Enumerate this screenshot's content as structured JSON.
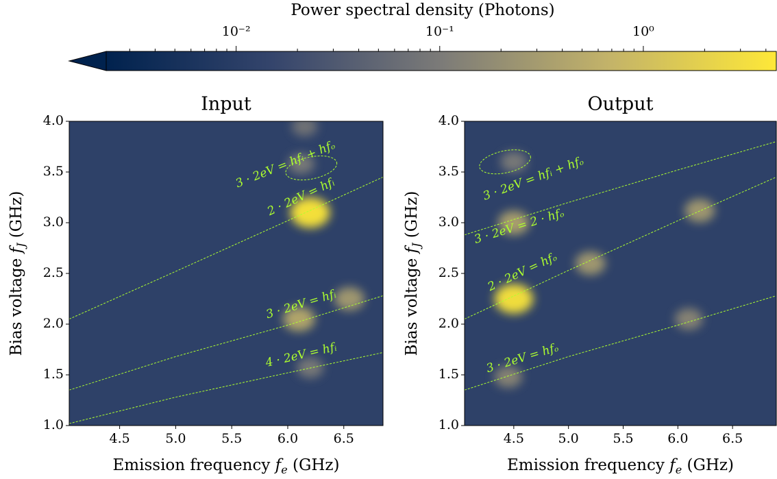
{
  "chart_data": {
    "type": "heatmap",
    "colormap": [
      "#00224e",
      "#35456c",
      "#7c7b78",
      "#c3b369",
      "#fee838"
    ],
    "annotation_color": "#adff2f",
    "colorbar": {
      "label": "Power spectral density (Photons)",
      "clim": [
        0.0023,
        4.5
      ],
      "log": true,
      "ticks": [
        {
          "value": 0.01,
          "label": "10⁻²"
        },
        {
          "value": 0.1,
          "label": "10⁻¹"
        },
        {
          "value": 1,
          "label": "10⁰"
        }
      ],
      "minor_ticks": [
        0.003,
        0.004,
        0.005,
        0.006,
        0.007,
        0.008,
        0.009,
        0.02,
        0.03,
        0.04,
        0.05,
        0.06,
        0.07,
        0.08,
        0.09,
        0.2,
        0.3,
        0.4,
        0.5,
        0.6,
        0.7,
        0.8,
        0.9,
        2,
        3,
        4
      ]
    },
    "xlabel": {
      "text": "Emission frequency ",
      "var": "f",
      "sub": "e",
      "unit": " (GHz)"
    },
    "ylabel": {
      "text": "Bias voltage ",
      "var": "f",
      "sub": "J",
      "unit": " (GHz)"
    },
    "panels": [
      {
        "title": "Input",
        "background": 0.012,
        "xlim": [
          4.05,
          6.85
        ],
        "ylim": [
          1,
          4
        ],
        "xticks": [
          4.5,
          {
            "value": 5,
            "label": "5.0"
          },
          5.5,
          {
            "value": 6,
            "label": "6.0"
          },
          6.5
        ],
        "yticks": [
          {
            "value": 1,
            "label": "1.0"
          },
          1.5,
          {
            "value": 2,
            "label": "2.0"
          },
          2.5,
          {
            "value": 3,
            "label": "3.0"
          },
          3.5,
          {
            "value": 4,
            "label": "4.0"
          }
        ],
        "curves": [
          {
            "name": "2 · 2eV = hfᵢ",
            "x": [
              4.05,
              5.0,
              6.0,
              6.85
            ],
            "y": [
              2.05,
              2.52,
              3.02,
              3.45
            ]
          },
          {
            "name": "3 · 2eV = hfᵢ",
            "x": [
              4.05,
              5.0,
              6.0,
              6.85
            ],
            "y": [
              1.35,
              1.68,
              1.99,
              2.28
            ]
          },
          {
            "name": "4 · 2eV = hfᵢ",
            "x": [
              4.05,
              5.0,
              6.0,
              6.85
            ],
            "y": [
              1.02,
              1.28,
              1.52,
              1.72
            ]
          }
        ],
        "annotations": [
          "3 · 2eV = hfᵢ + hfₒ"
        ],
        "hotspots": {
          "x": [
            6.2,
            6.1,
            6.55,
            6.2,
            6.12,
            6.15
          ],
          "y": [
            3.1,
            2.05,
            2.25,
            1.57,
            3.58,
            3.95
          ],
          "values": [
            5,
            0.5,
            0.3,
            0.1,
            0.1,
            0.08
          ]
        }
      },
      {
        "title": "Output",
        "background": 0.012,
        "xlim": [
          4.05,
          6.9
        ],
        "ylim": [
          1,
          4
        ],
        "xticks": [
          4.5,
          {
            "value": 5,
            "label": "5.0"
          },
          5.5,
          {
            "value": 6,
            "label": "6.0"
          },
          6.5
        ],
        "yticks": [
          {
            "value": 1,
            "label": "1.0"
          },
          1.5,
          {
            "value": 2,
            "label": "2.0"
          },
          2.5,
          {
            "value": 3,
            "label": "3.0"
          },
          3.5,
          {
            "value": 4,
            "label": "4.0"
          }
        ],
        "curves": [
          {
            "name": "3 · 2eV = 2 · hfₒ",
            "x": [
              4.05,
              5.0,
              6.0,
              6.9
            ],
            "y": [
              2.88,
              3.2,
              3.52,
              3.8
            ]
          },
          {
            "name": "2 · 2eV = hfₒ",
            "x": [
              4.05,
              5.0,
              6.0,
              6.9
            ],
            "y": [
              2.05,
              2.53,
              3.02,
              3.45
            ]
          },
          {
            "name": "3 · 2eV = hfₒ",
            "x": [
              4.05,
              5.0,
              6.0,
              6.9
            ],
            "y": [
              1.35,
              1.68,
              1.99,
              2.28
            ]
          }
        ],
        "annotations": [
          "3 · 2eV = hfᵢ + hfₒ"
        ],
        "hotspots": {
          "x": [
            4.5,
            4.5,
            6.2,
            6.1,
            4.45,
            4.5,
            5.2
          ],
          "y": [
            2.25,
            3.0,
            3.12,
            2.05,
            1.48,
            3.6,
            2.6
          ],
          "values": [
            4,
            0.4,
            0.3,
            0.15,
            0.15,
            0.1,
            0.3
          ]
        }
      }
    ]
  }
}
